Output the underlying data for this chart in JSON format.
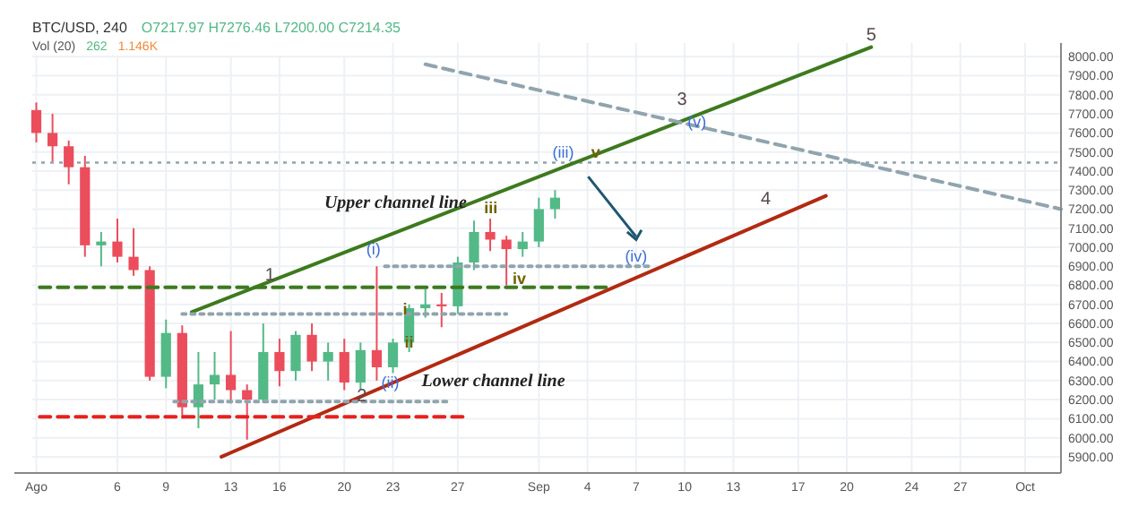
{
  "chart_data": {
    "type": "candlestick",
    "title": "BTC/USD, 240",
    "subtitle": "O7217.97 H7276.46 L7200.00 C7214.35",
    "x": [
      "--08-01",
      "--08-02",
      "--08-03",
      "--08-04",
      "--08-05",
      "--08-06",
      "--08-07",
      "--08-08",
      "--08-09",
      "--08-10",
      "--08-11",
      "--08-12",
      "--08-13",
      "--08-14",
      "--08-15",
      "--08-16",
      "--08-17",
      "--08-18",
      "--08-19",
      "--08-20",
      "--08-21",
      "--08-22",
      "--08-23",
      "--08-24",
      "--08-25",
      "--08-26",
      "--08-27",
      "--08-28",
      "--08-29",
      "--08-30",
      "--08-31",
      "--09-01",
      "--09-02"
    ],
    "ohlc": [
      [
        7720,
        7760,
        7550,
        7600
      ],
      [
        7600,
        7700,
        7450,
        7530
      ],
      [
        7530,
        7560,
        7330,
        7420
      ],
      [
        7420,
        7480,
        6950,
        7010
      ],
      [
        7010,
        7080,
        6900,
        7030
      ],
      [
        7030,
        7150,
        6920,
        6950
      ],
      [
        6950,
        7100,
        6850,
        6880
      ],
      [
        6880,
        6900,
        6300,
        6320
      ],
      [
        6320,
        6620,
        6260,
        6550
      ],
      [
        6550,
        6590,
        6100,
        6160
      ],
      [
        6160,
        6450,
        6050,
        6280
      ],
      [
        6280,
        6450,
        6200,
        6330
      ],
      [
        6330,
        6560,
        6180,
        6250
      ],
      [
        6250,
        6280,
        5990,
        6200
      ],
      [
        6200,
        6600,
        6190,
        6450
      ],
      [
        6450,
        6520,
        6270,
        6350
      ],
      [
        6350,
        6560,
        6300,
        6540
      ],
      [
        6540,
        6600,
        6350,
        6400
      ],
      [
        6400,
        6500,
        6300,
        6450
      ],
      [
        6450,
        6520,
        6250,
        6290
      ],
      [
        6290,
        6500,
        6250,
        6460
      ],
      [
        6460,
        6900,
        6300,
        6370
      ],
      [
        6370,
        6520,
        6340,
        6500
      ],
      [
        6500,
        6700,
        6450,
        6680
      ],
      [
        6680,
        6780,
        6630,
        6700
      ],
      [
        6700,
        6760,
        6580,
        6690
      ],
      [
        6690,
        6950,
        6650,
        6920
      ],
      [
        6920,
        7140,
        6880,
        7080
      ],
      [
        7080,
        7150,
        6980,
        7040
      ],
      [
        7040,
        7060,
        6800,
        6990
      ],
      [
        6990,
        7080,
        6950,
        7030
      ],
      [
        7030,
        7260,
        7000,
        7200
      ],
      [
        7200,
        7300,
        7150,
        7260
      ]
    ],
    "colors": [
      "#eb4d5c",
      "#eb4d5c",
      "#eb4d5c",
      "#eb4d5c",
      "#53b987",
      "#eb4d5c",
      "#eb4d5c",
      "#eb4d5c",
      "#53b987",
      "#eb4d5c",
      "#53b987",
      "#53b987",
      "#eb4d5c",
      "#eb4d5c",
      "#53b987",
      "#eb4d5c",
      "#53b987",
      "#eb4d5c",
      "#53b987",
      "#eb4d5c",
      "#53b987",
      "#eb4d5c",
      "#53b987",
      "#53b987",
      "#53b987",
      "#eb4d5c",
      "#53b987",
      "#53b987",
      "#eb4d5c",
      "#eb4d5c",
      "#53b987",
      "#53b987",
      "#53b987"
    ],
    "series": [
      {
        "type": "line",
        "name": "Upper channel line",
        "color": "#3d7a1e",
        "line_style": "solid",
        "x": [
          "--08-10T14:00",
          "--09-21T12:00"
        ],
        "values": [
          6660,
          8050
        ]
      },
      {
        "type": "line",
        "name": "Lower channel line",
        "color": "#b22a12",
        "line_style": "solid",
        "x": [
          "--08-12T10:00",
          "--09-18T17:00"
        ],
        "values": [
          5900,
          7270
        ]
      },
      {
        "type": "line",
        "color": "#3d7a1e",
        "line_style": "dashed",
        "x": [
          "--08-01T05:00",
          "--09-05T07:00"
        ],
        "values": [
          6790,
          6790
        ]
      },
      {
        "type": "line",
        "color": "#e8201c",
        "line_style": "dashed",
        "x": [
          "--08-01T05:00",
          "--08-27T14:00"
        ],
        "values": [
          6110,
          6110
        ]
      },
      {
        "type": "line",
        "color": "#90a4ae",
        "line_style": "dashed",
        "x": [
          "--08-25T00:00",
          "--10-03T05:00"
        ],
        "values": [
          7960,
          7200
        ]
      },
      {
        "type": "line",
        "color": "#90a4ae",
        "line_style": "dotted",
        "x": [
          "--08-10T00:00",
          "--08-30T00:00"
        ],
        "values": [
          6650,
          6650
        ]
      },
      {
        "type": "line",
        "color": "#90a4ae",
        "line_style": "dotted",
        "x": [
          "--08-22T12:00",
          "--09-08T00:00"
        ],
        "values": [
          6900,
          6900
        ]
      },
      {
        "type": "line",
        "color": "#90a4ae",
        "line_style": "dotted",
        "x": [
          "--08-09T12:00",
          "--08-26T12:00"
        ],
        "values": [
          6190,
          6190
        ]
      }
    ],
    "ref_lines": [
      {
        "axis": "y",
        "value": 7444,
        "color": "#90a4ae",
        "line_style": "dotted"
      }
    ],
    "annotations": [
      "Vol (20)",
      "262",
      "1.146K",
      {
        "text": "1",
        "x": "--08-15T10:00",
        "y": 6790
      },
      {
        "text": "2",
        "x": "--08-21T02:00",
        "y": 6153
      },
      {
        "text": "3",
        "x": "--09-09T20:00",
        "y": 7710
      },
      {
        "text": "4",
        "x": "--09-15T00:00",
        "y": 7190
      },
      {
        "text": "5",
        "x": "--09-21T12:00",
        "y": 8050
      },
      {
        "text": "(i)",
        "x": "--08-21T19:00",
        "y": 6935
      },
      {
        "text": "(ii)",
        "x": "--08-22T20:00",
        "y": 6234
      },
      {
        "text": "(iii)",
        "x": "--09-02T12:00",
        "y": 7444
      },
      {
        "text": "(iv)",
        "x": "--09-07T00:00",
        "y": 6900
      },
      {
        "text": "(v)",
        "x": "--09-10T18:00",
        "y": 7605
      },
      {
        "text": "i",
        "x": "--08-23T18:00",
        "y": 6620
      },
      {
        "text": "ii",
        "x": "--08-24",
        "y": 6450
      },
      {
        "text": "iii",
        "x": "--08-29T01:00",
        "y": 7153
      },
      {
        "text": "iv",
        "x": "--08-30T19:00",
        "y": 6782
      },
      {
        "text": "v",
        "x": "--09-04T12:00",
        "y": 7444
      }
    ],
    "xlim": [
      "--07-31T18:00",
      "--10-03T05:00"
    ],
    "xticks": [
      {
        "value": "--08-01",
        "label": "Ago"
      },
      {
        "value": "--08-06",
        "label": "6"
      },
      {
        "value": "--08-09",
        "label": "9"
      },
      {
        "value": "--08-13",
        "label": "13"
      },
      {
        "value": "--08-16",
        "label": "16"
      },
      {
        "value": "--08-20",
        "label": "20"
      },
      {
        "value": "--08-23",
        "label": "23"
      },
      {
        "value": "--08-27",
        "label": "27"
      },
      {
        "value": "--09-01",
        "label": "Sep"
      },
      {
        "value": "--09-04",
        "label": "4"
      },
      {
        "value": "--09-07",
        "label": "7"
      },
      {
        "value": "--09-10",
        "label": "10"
      },
      {
        "value": "--09-13",
        "label": "13"
      },
      {
        "value": "--09-17",
        "label": "17"
      },
      {
        "value": "--09-20",
        "label": "20"
      },
      {
        "value": "--09-24",
        "label": "24"
      },
      {
        "value": "--09-27",
        "label": "27"
      },
      {
        "value": "--10-01",
        "label": "Oct"
      }
    ],
    "ylim": [
      5815,
      8072
    ],
    "yticks": [
      {
        "value": 5900,
        "label": "5900.00"
      },
      {
        "value": 6000,
        "label": "6000.00"
      },
      {
        "value": 6100,
        "label": "6100.00"
      },
      {
        "value": 6200,
        "label": "6200.00"
      },
      {
        "value": 6300,
        "label": "6300.00"
      },
      {
        "value": 6400,
        "label": "6400.00"
      },
      {
        "value": 6500,
        "label": "6500.00"
      },
      {
        "value": 6600,
        "label": "6600.00"
      },
      {
        "value": 6700,
        "label": "6700.00"
      },
      {
        "value": 6800,
        "label": "6800.00"
      },
      {
        "value": 6900,
        "label": "6900.00"
      },
      {
        "value": 7000,
        "label": "7000.00"
      },
      {
        "value": 7100,
        "label": "7100.00"
      },
      {
        "value": 7200,
        "label": "7200.00"
      },
      {
        "value": 7300,
        "label": "7300.00"
      },
      {
        "value": 7400,
        "label": "7400.00"
      },
      {
        "value": 7500,
        "label": "7500.00"
      },
      {
        "value": 7600,
        "label": "7600.00"
      },
      {
        "value": 7700,
        "label": "7700.00"
      },
      {
        "value": 7800,
        "label": "7800.00"
      },
      {
        "value": 7900,
        "label": "7900.00"
      },
      {
        "value": 8000,
        "label": "8000.00"
      }
    ],
    "grid": true
  }
}
